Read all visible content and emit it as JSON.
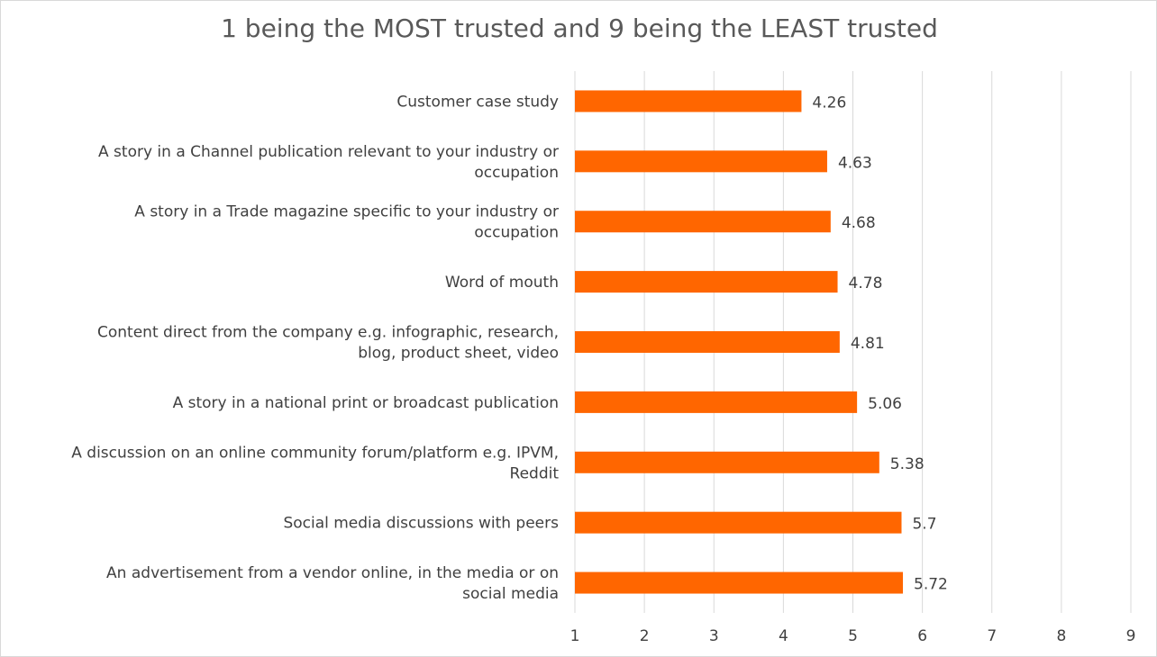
{
  "chart_data": {
    "type": "bar",
    "orientation": "horizontal",
    "title": "1 being the MOST trusted and 9 being the LEAST trusted",
    "categories": [
      [
        "Customer case study"
      ],
      [
        "A story in a Channel publication relevant to your industry or",
        "occupation"
      ],
      [
        "A story in a Trade magazine specific to your industry or",
        "occupation"
      ],
      [
        "Word of mouth"
      ],
      [
        "Content direct from the company e.g. infographic, research,",
        "blog, product sheet, video"
      ],
      [
        "A story in a national print or broadcast publication"
      ],
      [
        "A discussion on an online community forum/platform e.g. IPVM,",
        "Reddit"
      ],
      [
        "Social media discussions with peers"
      ],
      [
        "An advertisement from a vendor online, in the media or on",
        "social media"
      ]
    ],
    "values": [
      4.26,
      4.63,
      4.68,
      4.78,
      4.81,
      5.06,
      5.38,
      5.7,
      5.72
    ],
    "value_labels": [
      "4.26",
      "4.63",
      "4.68",
      "4.78",
      "4.81",
      "5.06",
      "5.38",
      "5.7",
      "5.72"
    ],
    "xlim": [
      1,
      9
    ],
    "xticks": [
      "1",
      "2",
      "3",
      "4",
      "5",
      "6",
      "7",
      "8",
      "9"
    ],
    "grid": true,
    "legend": "none",
    "bar_color": "#ff6600",
    "grid_color": "#d9d9d9"
  }
}
